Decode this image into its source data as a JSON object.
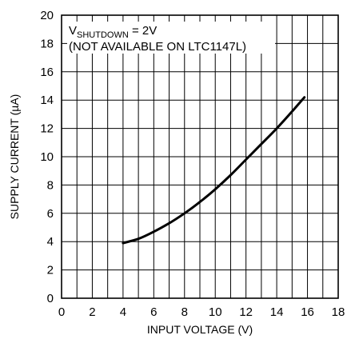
{
  "chart_data": {
    "type": "line",
    "xlabel": "INPUT VOLTAGE (V)",
    "ylabel": "SUPPLY CURRENT (µA)",
    "xlim": [
      0,
      18
    ],
    "ylim": [
      0,
      20
    ],
    "x_ticks": [
      0,
      2,
      4,
      6,
      8,
      10,
      12,
      14,
      16,
      18
    ],
    "y_ticks": [
      0,
      2,
      4,
      6,
      8,
      10,
      12,
      14,
      16,
      18,
      20
    ],
    "x_tick_labels": [
      "0",
      "2",
      "4",
      "6",
      "8",
      "10",
      "12",
      "14",
      "16",
      "18"
    ],
    "y_tick_labels": [
      "0",
      "2",
      "4",
      "6",
      "8",
      "10",
      "12",
      "14",
      "16",
      "18",
      "20"
    ],
    "grid": true,
    "grid_minor_x_step": 1,
    "grid_minor_y_step": 2,
    "annotation": {
      "line1_prefix": "V",
      "line1_sub": "SHUTDOWN",
      "line1_suffix": " = 2V",
      "line2": "(NOT AVAILABLE ON LTC1147L)"
    },
    "series": [
      {
        "x": [
          4.0,
          5.0,
          6.0,
          7.0,
          8.0,
          9.0,
          10.0,
          11.0,
          12.0,
          13.0,
          14.0,
          15.0,
          15.8
        ],
        "y": [
          3.9,
          4.2,
          4.7,
          5.3,
          6.0,
          6.8,
          7.7,
          8.7,
          9.8,
          10.9,
          12.0,
          13.2,
          14.2
        ],
        "color": "#000000"
      }
    ]
  }
}
